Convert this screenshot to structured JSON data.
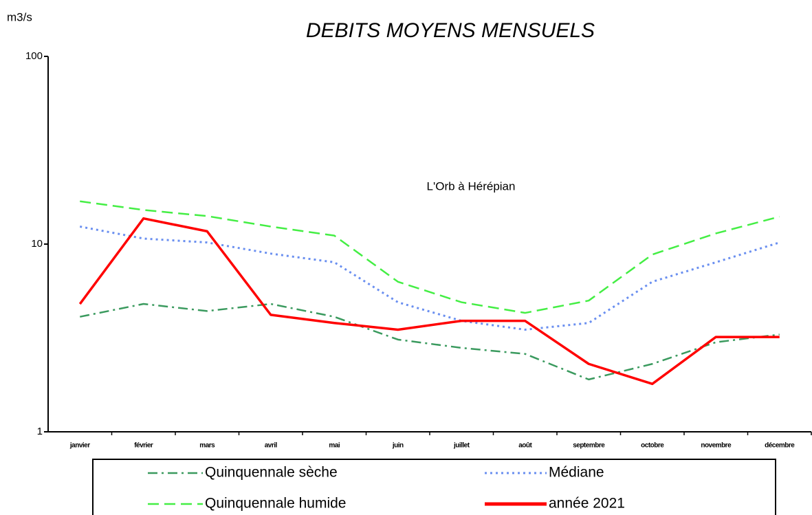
{
  "chart_data": {
    "type": "line",
    "title": "DEBITS MOYENS MENSUELS",
    "y_label": "m3/s",
    "annotation": "L'Orb à Hérépian",
    "categories": [
      "janvier",
      "février",
      "mars",
      "avril",
      "mai",
      "juin",
      "juillet",
      "août",
      "septembre",
      "octobre",
      "novembre",
      "décembre"
    ],
    "ylim": [
      1,
      100
    ],
    "yticks": [
      1,
      10,
      100
    ],
    "log_scale": true,
    "grid": false,
    "series": [
      {
        "name": "Quinquennale sèche",
        "color": "#3a9a5e",
        "style": "dashdot",
        "values": [
          4.1,
          4.8,
          4.4,
          4.8,
          4.1,
          3.1,
          2.8,
          2.6,
          1.9,
          2.3,
          3.0,
          3.3
        ]
      },
      {
        "name": "Médiane",
        "color": "#6a8ff0",
        "style": "dotted",
        "values": [
          12.4,
          10.7,
          10.2,
          8.9,
          8.0,
          4.9,
          3.9,
          3.5,
          3.8,
          6.3,
          8.0,
          10.2
        ]
      },
      {
        "name": "Quinquennale humide",
        "color": "#44ee44",
        "style": "dashed",
        "values": [
          16.9,
          15.2,
          14.1,
          12.4,
          11.1,
          6.3,
          4.9,
          4.3,
          5.0,
          8.8,
          11.4,
          14.0
        ]
      },
      {
        "name": "année 2021",
        "color": "#ff0000",
        "style": "solid",
        "values": [
          4.8,
          13.7,
          11.7,
          4.2,
          3.8,
          3.5,
          3.9,
          3.9,
          2.3,
          1.8,
          3.2,
          3.2
        ]
      }
    ]
  }
}
